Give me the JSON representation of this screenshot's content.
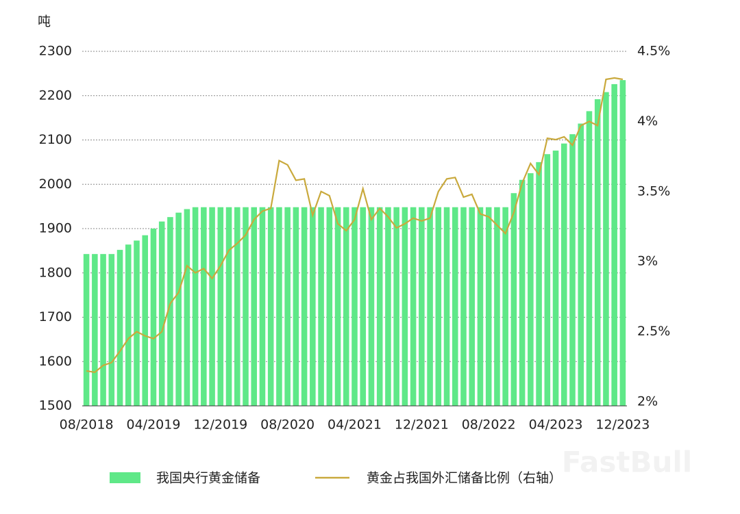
{
  "chart_data": {
    "type": "bar_line",
    "y_label": "吨",
    "watermark": "FastBull",
    "categories": [
      "08/2018",
      null,
      null,
      null,
      null,
      null,
      null,
      null,
      "04/2019",
      null,
      null,
      null,
      null,
      null,
      null,
      null,
      "12/2019",
      null,
      null,
      null,
      null,
      null,
      null,
      null,
      "08/2020",
      null,
      null,
      null,
      null,
      null,
      null,
      null,
      "04/2021",
      null,
      null,
      null,
      null,
      null,
      null,
      null,
      "12/2021",
      null,
      null,
      null,
      null,
      null,
      null,
      null,
      "08/2022",
      null,
      null,
      null,
      null,
      null,
      null,
      null,
      "04/2023",
      null,
      null,
      null,
      null,
      null,
      null,
      null,
      "12/2023"
    ],
    "series": [
      {
        "name": "我国央行黄金储备",
        "color": "#5fe888",
        "values": [
          1842.6,
          1842.6,
          1842.6,
          1842.6,
          1852,
          1864,
          1873,
          1885,
          1900,
          1916,
          1926,
          1936,
          1944,
          1948.3,
          1948.3,
          1948.3,
          1948.3,
          1948.3,
          1948.3,
          1948.3,
          1948.3,
          1948.3,
          1948.3,
          1948.3,
          1948.3,
          1948.3,
          1948.3,
          1948.3,
          1948.3,
          1948.3,
          1948.3,
          1948.3,
          1948.3,
          1948.3,
          1948.3,
          1948.3,
          1948.3,
          1948.3,
          1948.3,
          1948.3,
          1948.3,
          1948.3,
          1948.3,
          1948.3,
          1948.3,
          1948.3,
          1948.3,
          1948.3,
          1948.3,
          1948.3,
          1948.3,
          1980,
          2010,
          2025,
          2050,
          2068,
          2076,
          2092,
          2113,
          2137,
          2165,
          2192,
          2208,
          2226,
          2235
        ]
      },
      {
        "name": "黄金占我国外汇储备比例（右轴）",
        "color": "#c9a93c",
        "axis": "y2",
        "values": [
          2.22,
          2.21,
          2.26,
          2.28,
          2.36,
          2.45,
          2.5,
          2.47,
          2.45,
          2.5,
          2.7,
          2.78,
          2.97,
          2.92,
          2.95,
          2.88,
          2.97,
          3.08,
          3.13,
          3.19,
          3.3,
          3.36,
          3.38,
          3.72,
          3.69,
          3.58,
          3.59,
          3.33,
          3.5,
          3.47,
          3.27,
          3.22,
          3.3,
          3.52,
          3.3,
          3.38,
          3.32,
          3.24,
          3.27,
          3.31,
          3.29,
          3.31,
          3.5,
          3.59,
          3.6,
          3.46,
          3.48,
          3.34,
          3.32,
          3.26,
          3.2,
          3.35,
          3.56,
          3.7,
          3.62,
          3.88,
          3.87,
          3.89,
          3.83,
          3.97,
          4.0,
          3.97,
          4.3,
          4.31,
          4.3
        ]
      }
    ],
    "ylim": [
      1500,
      2300
    ],
    "yticks": [
      1500,
      1600,
      1700,
      1800,
      1900,
      2000,
      2100,
      2200,
      2300
    ],
    "y2lim": [
      2,
      4.5
    ],
    "y2ticks": [
      {
        "value": 2,
        "label": "2%"
      },
      {
        "value": 2.5,
        "label": "2.5%"
      },
      {
        "value": 3,
        "label": "3%"
      },
      {
        "value": 3.5,
        "label": "3.5%"
      },
      {
        "value": 4,
        "label": "4%"
      },
      {
        "value": 4.5,
        "label": "4.5%"
      }
    ],
    "grid": true
  }
}
